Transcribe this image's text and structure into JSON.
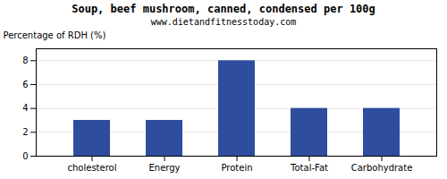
{
  "chart_data": {
    "type": "bar",
    "title": "Soup, beef mushroom, canned, condensed per 100g",
    "subtitle": "www.dietandfitnesstoday.com",
    "categories": [
      "cholesterol",
      "Energy",
      "Protein",
      "Total-Fat",
      "Carbohydrate"
    ],
    "values": [
      3.0,
      3.0,
      8.0,
      4.0,
      4.0
    ],
    "color": "#2e4d9e",
    "ylabel": "Percentage of RDH (%)",
    "ylim": [
      0,
      9
    ],
    "yticks": [
      0,
      2,
      4,
      6,
      8
    ],
    "grid": true
  }
}
